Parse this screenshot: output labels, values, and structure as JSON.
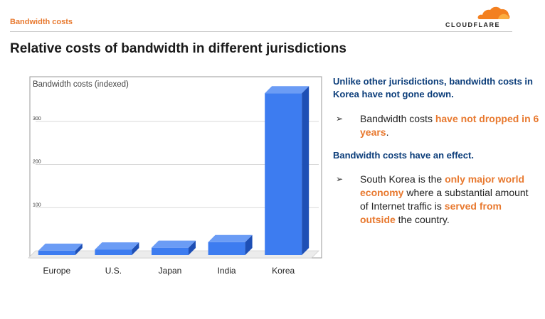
{
  "header": {
    "section_label": "Bandwidth costs",
    "logo_text": "CLOUDFLARE",
    "logo_color": "#f38020"
  },
  "title": "Relative costs of bandwidth in different jurisdictions",
  "chart_data": {
    "type": "bar",
    "title": "Bandwidth costs (indexed)",
    "categories": [
      "Europe",
      "U.S.",
      "Japan",
      "India",
      "Korea"
    ],
    "values": [
      10,
      13,
      17,
      30,
      375
    ],
    "ylim": [
      0,
      400
    ],
    "yticks": [
      100,
      200,
      300
    ],
    "ytick_labels": [
      "100",
      "200",
      "300"
    ],
    "grid": true,
    "style": "3d",
    "bar_color": "#3d7cf0",
    "bar_side_color": "#1e4fb5",
    "bar_top_color": "#6b9cf5"
  },
  "right_panel": {
    "lead1": "Unlike other jurisdictions, bandwidth costs in Korea have not gone down.",
    "bullet1": {
      "arrow": "➢",
      "text_before": "Bandwidth costs ",
      "highlight": "have not dropped in 6 years",
      "text_after": "."
    },
    "lead2": "Bandwidth costs have an effect.",
    "bullet2": {
      "arrow": "➢",
      "text1": "South Korea is the ",
      "highlight1": "only major world economy",
      "text2": " where a substantial amount of Internet traffic is ",
      "highlight2": "served from outside",
      "text3": " the country."
    },
    "highlight_color": "#e8792f",
    "lead_color": "#0b3d7a"
  }
}
